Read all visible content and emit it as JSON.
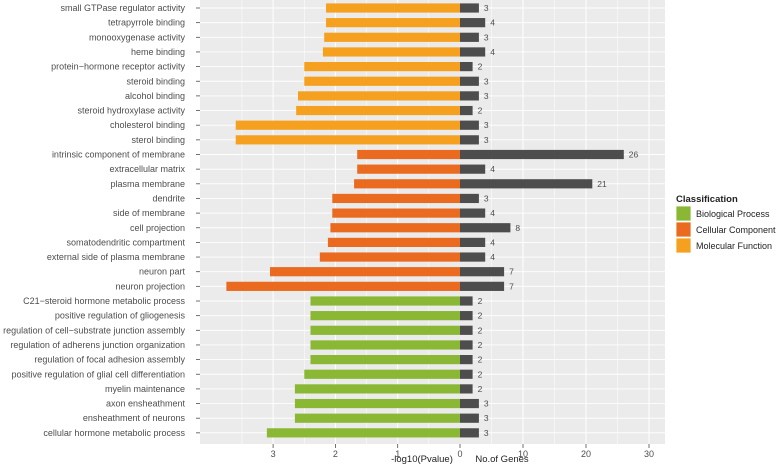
{
  "chart_data": {
    "type": "bar",
    "subtype": "diverging horizontal bar",
    "left_axis_title": "-log10(Pvalue)",
    "right_axis_title": "No.of Genes",
    "left_ticks": [
      3,
      2,
      1
    ],
    "right_ticks": [
      0,
      10,
      20,
      30
    ],
    "pvalue_range": [
      0,
      3.75
    ],
    "genes_range": [
      0,
      32
    ],
    "legend": {
      "title": "Classification",
      "position": "right",
      "items": [
        {
          "label": "Biological Process",
          "color": "#8ab834"
        },
        {
          "label": "Cellular Component",
          "color": "#ea6a20"
        },
        {
          "label": "Molecular Function",
          "color": "#f5a11f"
        }
      ]
    },
    "genes_bar_color": "#4d4d4d",
    "categories": [
      {
        "term": "small GTPase regulator activity",
        "class": "Molecular Function",
        "neg_log10_p": 2.15,
        "genes": 3
      },
      {
        "term": "tetrapyrrole binding",
        "class": "Molecular Function",
        "neg_log10_p": 2.15,
        "genes": 4
      },
      {
        "term": "monooxygenase activity",
        "class": "Molecular Function",
        "neg_log10_p": 2.18,
        "genes": 3
      },
      {
        "term": "heme binding",
        "class": "Molecular Function",
        "neg_log10_p": 2.2,
        "genes": 4
      },
      {
        "term": "protein−hormone receptor activity",
        "class": "Molecular Function",
        "neg_log10_p": 2.5,
        "genes": 2
      },
      {
        "term": "steroid binding",
        "class": "Molecular Function",
        "neg_log10_p": 2.5,
        "genes": 3
      },
      {
        "term": "alcohol binding",
        "class": "Molecular Function",
        "neg_log10_p": 2.6,
        "genes": 3
      },
      {
        "term": "steroid hydroxylase activity",
        "class": "Molecular Function",
        "neg_log10_p": 2.63,
        "genes": 2
      },
      {
        "term": "cholesterol binding",
        "class": "Molecular Function",
        "neg_log10_p": 3.6,
        "genes": 3
      },
      {
        "term": "sterol binding",
        "class": "Molecular Function",
        "neg_log10_p": 3.6,
        "genes": 3
      },
      {
        "term": "intrinsic component of membrane",
        "class": "Cellular Component",
        "neg_log10_p": 1.65,
        "genes": 26
      },
      {
        "term": "extracellular matrix",
        "class": "Cellular Component",
        "neg_log10_p": 1.65,
        "genes": 4
      },
      {
        "term": "plasma membrane",
        "class": "Cellular Component",
        "neg_log10_p": 1.7,
        "genes": 21
      },
      {
        "term": "dendrite",
        "class": "Cellular Component",
        "neg_log10_p": 2.05,
        "genes": 3
      },
      {
        "term": "side of membrane",
        "class": "Cellular Component",
        "neg_log10_p": 2.05,
        "genes": 4
      },
      {
        "term": "cell projection",
        "class": "Cellular Component",
        "neg_log10_p": 2.08,
        "genes": 8
      },
      {
        "term": "somatodendritic compartment",
        "class": "Cellular Component",
        "neg_log10_p": 2.12,
        "genes": 4
      },
      {
        "term": "external side of plasma membrane",
        "class": "Cellular Component",
        "neg_log10_p": 2.25,
        "genes": 4
      },
      {
        "term": "neuron part",
        "class": "Cellular Component",
        "neg_log10_p": 3.05,
        "genes": 7
      },
      {
        "term": "neuron projection",
        "class": "Cellular Component",
        "neg_log10_p": 3.75,
        "genes": 7
      },
      {
        "term": "C21−steroid hormone metabolic process",
        "class": "Biological Process",
        "neg_log10_p": 2.4,
        "genes": 2
      },
      {
        "term": "positive regulation of gliogenesis",
        "class": "Biological Process",
        "neg_log10_p": 2.4,
        "genes": 2
      },
      {
        "term": "regulation of cell−substrate junction assembly",
        "class": "Biological Process",
        "neg_log10_p": 2.4,
        "genes": 2
      },
      {
        "term": "regulation of adherens junction organization",
        "class": "Biological Process",
        "neg_log10_p": 2.4,
        "genes": 2
      },
      {
        "term": "regulation of focal adhesion assembly",
        "class": "Biological Process",
        "neg_log10_p": 2.4,
        "genes": 2
      },
      {
        "term": "positive regulation of glial cell differentiation",
        "class": "Biological Process",
        "neg_log10_p": 2.5,
        "genes": 2
      },
      {
        "term": "myelin maintenance",
        "class": "Biological Process",
        "neg_log10_p": 2.65,
        "genes": 2
      },
      {
        "term": "axon ensheathment",
        "class": "Biological Process",
        "neg_log10_p": 2.65,
        "genes": 3
      },
      {
        "term": "ensheathment of neurons",
        "class": "Biological Process",
        "neg_log10_p": 2.65,
        "genes": 3
      },
      {
        "term": "cellular hormone metabolic process",
        "class": "Biological Process",
        "neg_log10_p": 3.1,
        "genes": 3
      }
    ]
  }
}
